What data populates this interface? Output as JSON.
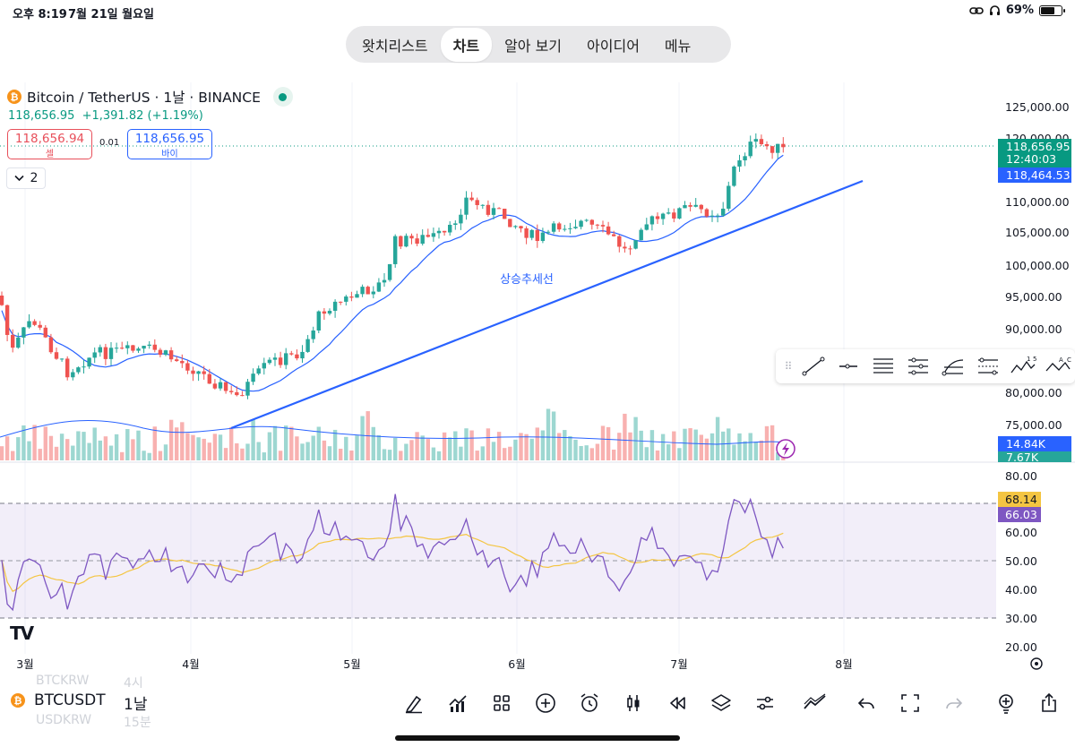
{
  "status": {
    "time": "오후 8:19",
    "date": "7월 21일 월요일",
    "battery": "69%",
    "battery_level": 0.69
  },
  "nav": {
    "tabs": [
      "왓치리스트",
      "차트",
      "알아 보기",
      "아이디어",
      "메뉴"
    ],
    "active": 1
  },
  "symbol": {
    "coin_glyph": "₿",
    "name": "Bitcoin / TetherUS · 1날 · BINANCE",
    "last": "118,656.95",
    "change": "+1,391.82 (+1.19%)",
    "sell_price": "118,656.94",
    "sell_label": "셀",
    "spread": "0.01",
    "buy_price": "118,656.95",
    "buy_label": "바이",
    "collapse_count": "2"
  },
  "chart_data": {
    "type": "candlestick",
    "price_axis": {
      "ticks": [
        "125,000.00",
        "120,000.00",
        "110,000.00",
        "105,000.00",
        "100,000.00",
        "95,000.00",
        "90,000.00",
        "80,000.00",
        "75,000.00"
      ]
    },
    "price_badges": {
      "last": "118,656.95",
      "countdown": "12:40:03",
      "ma": "118,464.53"
    },
    "volume_badges": {
      "vol": "14.84K",
      "vol_ma": "7.67K"
    },
    "trendline_label": "상승추세선",
    "rsi_axis": {
      "ticks": [
        "80.00",
        "60.00",
        "50.00",
        "40.00",
        "30.00",
        "20.00"
      ]
    },
    "rsi_badges": {
      "ma": "68.14",
      "rsi": "66.03"
    },
    "time_axis": [
      "3월",
      "4월",
      "5월",
      "6월",
      "7월",
      "8월"
    ],
    "colors": {
      "up": "#26a69a",
      "down": "#ef5350",
      "ma": "#2962ff",
      "trend": "#2962ff",
      "rsi": "#7e57c2",
      "rsi_ma": "#f4c542",
      "last": "#089981"
    }
  },
  "toolbar": {
    "symbol": "BTCUSDT",
    "interval": "1날",
    "ghost_top": "BTCKRW",
    "ghost_top_right": "4시",
    "ghost_bottom": "USDKRW",
    "ghost_bottom_right": "15분"
  },
  "brand": {
    "logo": "TV"
  }
}
